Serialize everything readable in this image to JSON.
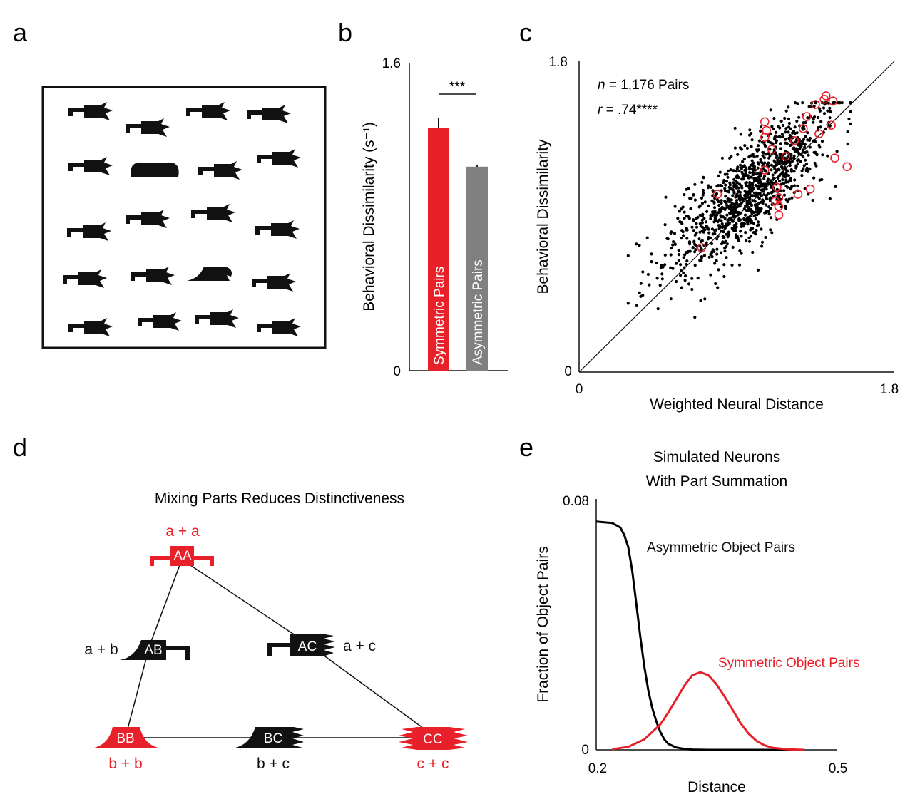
{
  "panels": {
    "a": {
      "letter": "a",
      "shapes_count": 20
    },
    "b": {
      "letter": "b"
    },
    "c": {
      "letter": "c"
    },
    "d": {
      "letter": "d"
    },
    "e": {
      "letter": "e"
    }
  },
  "chart_data": [
    {
      "panel": "b",
      "type": "bar",
      "categories": [
        "Symmetric Pairs",
        "Asymmetric Pairs"
      ],
      "values": [
        1.26,
        1.06
      ],
      "errors": [
        0.055,
        0.01
      ],
      "colors": [
        "#e8202a",
        "#808080"
      ],
      "ylabel": "Behavioral Dissimilarity (s⁻¹)",
      "ylim": [
        0,
        1.6
      ],
      "yticks": [
        "0",
        "1.6"
      ],
      "significance": "***",
      "grid": false
    },
    {
      "panel": "c",
      "type": "scatter",
      "xlabel": "Weighted Neural Distance",
      "ylabel": "Behavioral Dissimilarity",
      "xlim": [
        0,
        1.8
      ],
      "ylim": [
        0,
        1.8
      ],
      "xticks": [
        "0",
        "1.8"
      ],
      "yticks": [
        "0",
        "1.8"
      ],
      "n_label": "n",
      "n_text": " = 1,176 Pairs",
      "r_label": "r",
      "r_text": " = .74****",
      "identity_line": true,
      "background_cloud": {
        "n": 1176,
        "color": "#000000"
      },
      "highlight_color": "#e8202a",
      "highlight_points": [
        [
          1.35,
          1.55
        ],
        [
          1.4,
          1.58
        ],
        [
          1.41,
          1.6
        ],
        [
          1.45,
          1.57
        ],
        [
          1.3,
          1.48
        ],
        [
          1.28,
          1.41
        ],
        [
          1.37,
          1.38
        ],
        [
          1.44,
          1.43
        ],
        [
          1.06,
          1.45
        ],
        [
          1.07,
          1.4
        ],
        [
          1.06,
          1.36
        ],
        [
          1.23,
          1.34
        ],
        [
          1.18,
          1.25
        ],
        [
          1.1,
          1.29
        ],
        [
          1.46,
          1.24
        ],
        [
          1.53,
          1.19
        ],
        [
          1.06,
          1.17
        ],
        [
          1.13,
          1.07
        ],
        [
          1.14,
          1.01
        ],
        [
          1.14,
          0.96
        ],
        [
          1.12,
          0.99
        ],
        [
          1.25,
          1.03
        ],
        [
          1.32,
          1.06
        ],
        [
          0.79,
          1.03
        ],
        [
          1.14,
          0.91
        ],
        [
          0.7,
          0.72
        ]
      ]
    },
    {
      "panel": "e",
      "type": "line",
      "title": [
        "Simulated Neurons",
        "With Part Summation"
      ],
      "xlabel": "Distance",
      "ylabel": "Fraction of Object Pairs",
      "xlim": [
        0.2,
        0.5
      ],
      "ylim": [
        0,
        0.08
      ],
      "xticks": [
        "0.2",
        "0.5"
      ],
      "yticks": [
        "0",
        "0.08"
      ],
      "series": [
        {
          "name": "Asymmetric Object Pairs",
          "color": "#000000",
          "x": [
            0.2,
            0.22,
            0.23,
            0.235,
            0.24,
            0.245,
            0.25,
            0.255,
            0.26,
            0.265,
            0.27,
            0.275,
            0.28,
            0.285,
            0.29,
            0.3,
            0.31,
            0.32,
            0.34,
            0.38,
            0.42,
            0.46
          ],
          "y": [
            0.0765,
            0.076,
            0.0745,
            0.072,
            0.068,
            0.06,
            0.049,
            0.038,
            0.028,
            0.02,
            0.014,
            0.0095,
            0.006,
            0.0035,
            0.002,
            0.0008,
            0.0003,
            0.0001,
            0.0,
            0.0,
            0.0,
            0.0
          ]
        },
        {
          "name": "Symmetric Object Pairs",
          "color": "#e8202a",
          "x": [
            0.22,
            0.24,
            0.26,
            0.28,
            0.29,
            0.3,
            0.31,
            0.32,
            0.33,
            0.34,
            0.35,
            0.36,
            0.37,
            0.38,
            0.39,
            0.4,
            0.41,
            0.42,
            0.44,
            0.46
          ],
          "y": [
            0.0002,
            0.001,
            0.0035,
            0.0085,
            0.0125,
            0.017,
            0.0215,
            0.025,
            0.026,
            0.025,
            0.022,
            0.018,
            0.0135,
            0.009,
            0.0055,
            0.003,
            0.0015,
            0.0007,
            0.0002,
            0.0
          ]
        }
      ]
    }
  ],
  "diagram_d": {
    "title": "Mixing Parts Reduces Distinctiveness",
    "nodes": [
      {
        "id": "AA",
        "label": "AA",
        "sum": "a + a",
        "color": "#e8202a"
      },
      {
        "id": "AB",
        "label": "AB",
        "sum": "a + b",
        "color": "#000000"
      },
      {
        "id": "AC",
        "label": "AC",
        "sum": "a + c",
        "color": "#000000"
      },
      {
        "id": "BB",
        "label": "BB",
        "sum": "b + b",
        "color": "#e8202a"
      },
      {
        "id": "BC",
        "label": "BC",
        "sum": "b + c",
        "color": "#000000"
      },
      {
        "id": "CC",
        "label": "CC",
        "sum": "c + c",
        "color": "#e8202a"
      }
    ]
  }
}
